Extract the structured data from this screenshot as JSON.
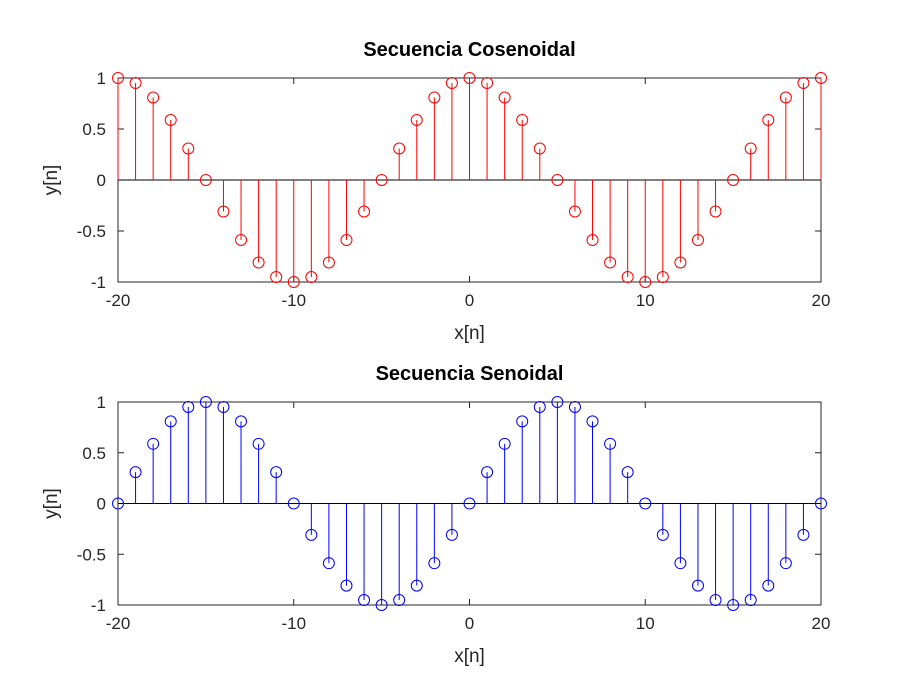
{
  "chart_data": [
    {
      "type": "stem",
      "title": "Secuencia Cosenoidal",
      "xlabel": "x[n]",
      "ylabel": "y[n]",
      "xlim": [
        -20,
        20
      ],
      "ylim": [
        -1,
        1
      ],
      "xticks": [
        -20,
        -10,
        0,
        10,
        20
      ],
      "yticks": [
        1,
        0.5,
        0,
        -0.5,
        -1
      ],
      "xtick_labels": [
        "-20",
        "-10",
        "0",
        "10",
        "20"
      ],
      "ytick_labels": [
        "1",
        "0.5",
        "0",
        "-0.5",
        "-1"
      ],
      "color": "#ff0000",
      "grid": false,
      "series": [
        {
          "x": [
            -20,
            -19,
            -18,
            -17,
            -16,
            -15,
            -14,
            -13,
            -12,
            -11,
            -10,
            -9,
            -8,
            -7,
            -6,
            -5,
            -4,
            -3,
            -2,
            -1,
            0,
            1,
            2,
            3,
            4,
            5,
            6,
            7,
            8,
            9,
            10,
            11,
            12,
            13,
            14,
            15,
            16,
            17,
            18,
            19,
            20
          ],
          "values": [
            1,
            0.951,
            0.809,
            0.588,
            0.309,
            0,
            -0.309,
            -0.588,
            -0.809,
            -0.951,
            -1,
            -0.951,
            -0.809,
            -0.588,
            -0.309,
            0,
            0.309,
            0.588,
            0.809,
            0.951,
            1,
            0.951,
            0.809,
            0.588,
            0.309,
            0,
            -0.309,
            -0.588,
            -0.809,
            -0.951,
            -1,
            -0.951,
            -0.809,
            -0.588,
            -0.309,
            0,
            0.309,
            0.588,
            0.809,
            0.951,
            1
          ]
        }
      ]
    },
    {
      "type": "stem",
      "title": "Secuencia Senoidal",
      "xlabel": "x[n]",
      "ylabel": "y[n]",
      "xlim": [
        -20,
        20
      ],
      "ylim": [
        -1,
        1
      ],
      "xticks": [
        -20,
        -10,
        0,
        10,
        20
      ],
      "yticks": [
        1,
        0.5,
        0,
        -0.5,
        -1
      ],
      "xtick_labels": [
        "-20",
        "-10",
        "0",
        "10",
        "20"
      ],
      "ytick_labels": [
        "1",
        "0.5",
        "0",
        "-0.5",
        "-1"
      ],
      "color": "#0000ff",
      "grid": false,
      "series": [
        {
          "x": [
            -20,
            -19,
            -18,
            -17,
            -16,
            -15,
            -14,
            -13,
            -12,
            -11,
            -10,
            -9,
            -8,
            -7,
            -6,
            -5,
            -4,
            -3,
            -2,
            -1,
            0,
            1,
            2,
            3,
            4,
            5,
            6,
            7,
            8,
            9,
            10,
            11,
            12,
            13,
            14,
            15,
            16,
            17,
            18,
            19,
            20
          ],
          "values": [
            0,
            0.309,
            0.588,
            0.809,
            0.951,
            1,
            0.951,
            0.809,
            0.588,
            0.309,
            0,
            -0.309,
            -0.588,
            -0.809,
            -0.951,
            -1,
            -0.951,
            -0.809,
            -0.588,
            -0.309,
            0,
            0.309,
            0.588,
            0.809,
            0.951,
            1,
            0.951,
            0.809,
            0.588,
            0.309,
            0,
            -0.309,
            -0.588,
            -0.809,
            -0.951,
            -1,
            -0.951,
            -0.809,
            -0.588,
            -0.309,
            0
          ]
        }
      ]
    }
  ]
}
